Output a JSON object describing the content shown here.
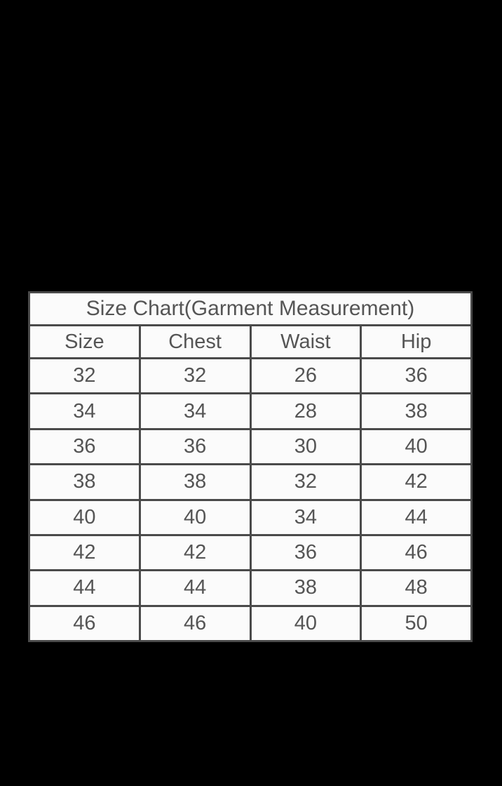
{
  "table": {
    "title": "Size Chart(Garment Measurement)",
    "headers": [
      "Size",
      "Chest",
      "Waist",
      "Hip"
    ],
    "rows": [
      [
        "32",
        "32",
        "26",
        "36"
      ],
      [
        "34",
        "34",
        "28",
        "38"
      ],
      [
        "36",
        "36",
        "30",
        "40"
      ],
      [
        "38",
        "38",
        "32",
        "42"
      ],
      [
        "40",
        "40",
        "34",
        "44"
      ],
      [
        "42",
        "42",
        "36",
        "46"
      ],
      [
        "44",
        "44",
        "38",
        "48"
      ],
      [
        "46",
        "46",
        "40",
        "50"
      ]
    ]
  }
}
